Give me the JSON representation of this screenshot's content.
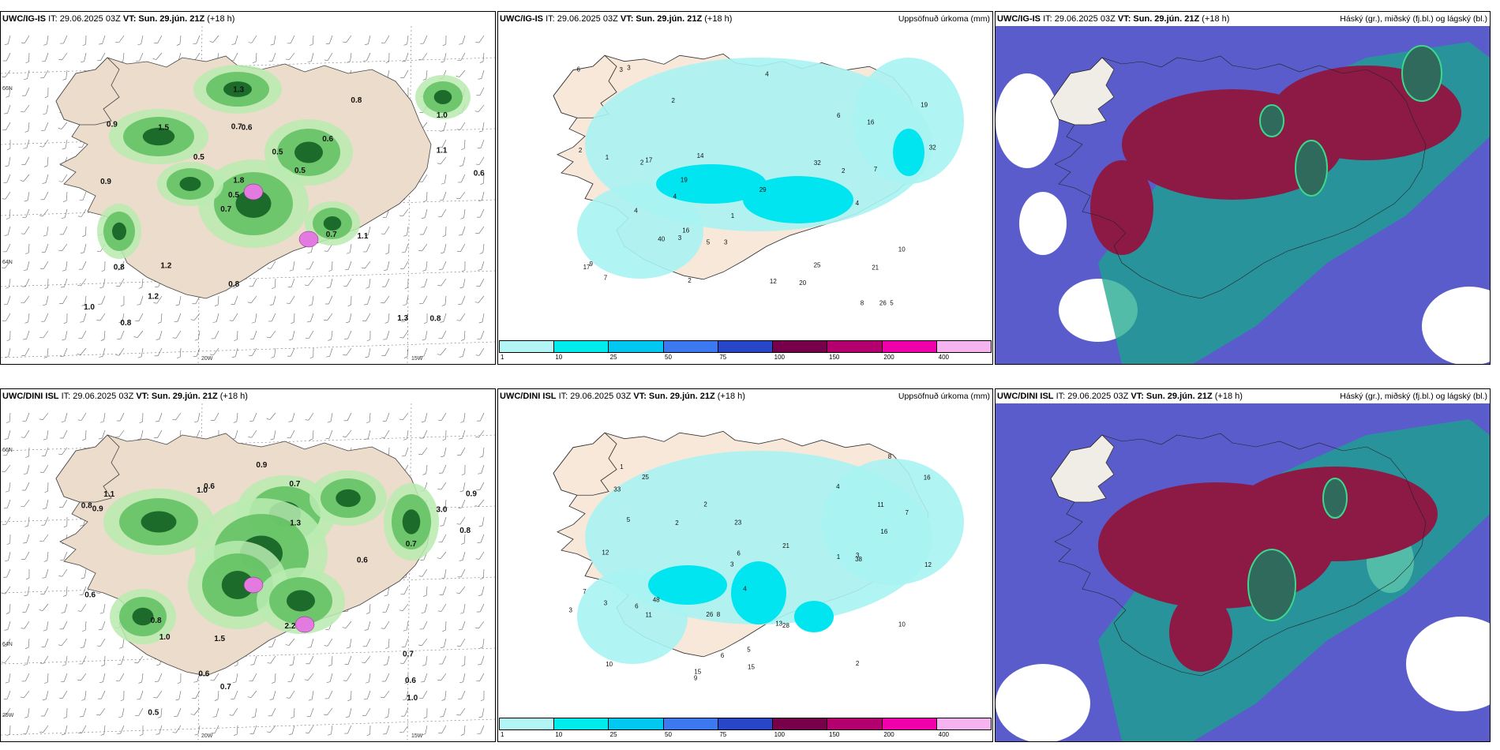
{
  "header_common": {
    "it": "IT: 29.06.2025 03Z",
    "vt_label": "VT:",
    "vt": "Sun. 29.jún. 21Z",
    "lead": "(+18 h)"
  },
  "panels": [
    {
      "model": "UWC/IG-IS",
      "title_right": ""
    },
    {
      "model": "UWC/IG-IS",
      "title_right": "Uppsöfnuð úrkoma (mm)"
    },
    {
      "model": "UWC/IG-IS",
      "title_right": "Háský (gr.), miðský (fj.bl.) og lágský (bl.)"
    },
    {
      "model": "UWC/DINI ISL",
      "title_right": ""
    },
    {
      "model": "UWC/DINI ISL",
      "title_right": "Uppsöfnuð úrkoma (mm)"
    },
    {
      "model": "UWC/DINI ISL",
      "title_right": "Háský (gr.), miðský (fj.bl.) og lágský (bl.)"
    }
  ],
  "axis": {
    "lat66": "66N",
    "lat64": "64N",
    "lon20": "20W",
    "lon15": "15W",
    "lon25": "25W"
  },
  "colorbar": {
    "ticks": [
      "1",
      "10",
      "25",
      "50",
      "75",
      "100",
      "150",
      "200",
      "400"
    ],
    "colors": [
      "#b3f5f5",
      "#00ecec",
      "#00c8f0",
      "#3c78f0",
      "#2846c8",
      "#78004b",
      "#b4006e",
      "#f000aa",
      "#f5b4f0"
    ]
  },
  "rain_labels_top": [
    "0.8",
    "0.9",
    "1.0",
    "0.7",
    "0.6",
    "0.8",
    "0.7",
    "0.5",
    "0.8",
    "0.5",
    "1.0",
    "1.2",
    "0.6",
    "0.5",
    "1.1",
    "0.9",
    "1.3",
    "0.6",
    "0.7",
    "1.1",
    "0.5",
    "0.8",
    "1.8",
    "1.5",
    "0.8",
    "1.2",
    "1.3"
  ],
  "rain_labels_bottom": [
    "0.6",
    "0.7",
    "0.6",
    "0.5",
    "0.9",
    "0.7",
    "0.6",
    "0.8",
    "0.9",
    "1.0",
    "0.7",
    "0.8",
    "0.9",
    "1.0",
    "0.6",
    "1.3",
    "1.5",
    "3.0",
    "0.8",
    "1.0",
    "2.2",
    "0.7",
    "1.1",
    "0.6"
  ],
  "accum_labels_top": [
    "1",
    "2",
    "3",
    "4",
    "5",
    "2",
    "3",
    "4",
    "3",
    "2",
    "7",
    "4",
    "6",
    "8",
    "19",
    "25",
    "29",
    "32",
    "19",
    "14",
    "26",
    "17",
    "20",
    "40",
    "21",
    "32",
    "12",
    "9",
    "16",
    "17",
    "16",
    "5",
    "7",
    "10",
    "6",
    "2",
    "1",
    "3",
    "4",
    "2"
  ],
  "accum_labels_bottom": [
    "1",
    "2",
    "3",
    "4",
    "5",
    "2",
    "3",
    "6",
    "8",
    "12",
    "11",
    "25",
    "15",
    "7",
    "10",
    "16",
    "28",
    "23",
    "12",
    "21",
    "13",
    "33",
    "48",
    "38",
    "26",
    "10",
    "6",
    "5",
    "8",
    "11",
    "16",
    "15",
    "9",
    "4",
    "3",
    "2",
    "1",
    "7",
    "3",
    "6"
  ]
}
